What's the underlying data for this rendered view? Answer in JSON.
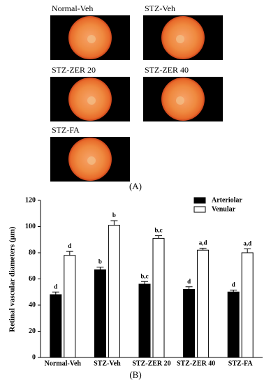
{
  "panel_a": {
    "images": [
      {
        "label": "Normal-Veh"
      },
      {
        "label": "STZ-Veh"
      },
      {
        "label": "STZ-ZER 20"
      },
      {
        "label": "STZ-ZER 40"
      },
      {
        "label": "STZ-FA"
      }
    ],
    "caption": "(A)"
  },
  "panel_b": {
    "caption": "(B)"
  },
  "chart_data": {
    "type": "bar",
    "y_label": "Retinal vascular diameters (μm)",
    "categories": [
      "Normal-Veh",
      "STZ-Veh",
      "STZ-ZER 20",
      "STZ-ZER 40",
      "STZ-FA"
    ],
    "series": [
      {
        "name": "Arteriolar",
        "color": "#000000",
        "values": [
          48,
          67,
          56,
          52,
          50
        ],
        "errors": [
          2,
          2,
          2,
          2,
          1.5
        ],
        "labels": [
          "d",
          "b",
          "b,c",
          "d",
          "d"
        ]
      },
      {
        "name": "Venular",
        "color": "#ffffff",
        "values": [
          78,
          101,
          91,
          82,
          80
        ],
        "errors": [
          3,
          3.5,
          2,
          1.5,
          3
        ],
        "labels": [
          "d",
          "b",
          "b,c",
          "a,d",
          "a,d"
        ]
      }
    ],
    "ylim": [
      0,
      120
    ],
    "yticks": [
      0,
      20,
      40,
      60,
      80,
      100,
      120
    ],
    "legend": "top-right"
  }
}
